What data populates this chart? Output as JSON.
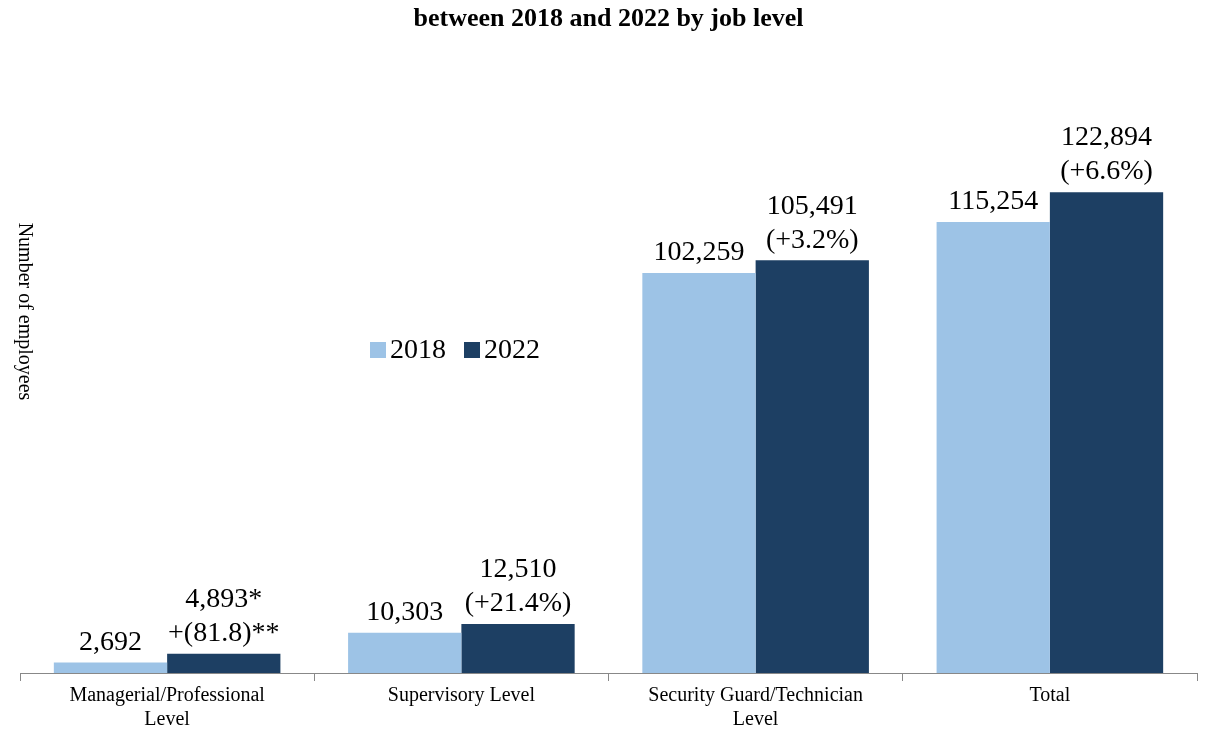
{
  "chart_data": {
    "type": "bar",
    "title": "between 2018 and 2022 by job level",
    "ylabel": "Number of employees",
    "categories": [
      "Managerial/Professional Level",
      "Supervisory Level",
      "Security Guard/Technician Level",
      "Total"
    ],
    "series": [
      {
        "name": "2018",
        "color": "#9dc3e6",
        "values": [
          2692,
          10303,
          102259,
          115254
        ],
        "value_labels": [
          "2,692",
          "10,303",
          "102,259",
          "115,254"
        ]
      },
      {
        "name": "2022",
        "color": "#1d3f63",
        "values": [
          4893,
          12510,
          105491,
          122894
        ],
        "value_labels": [
          "4,893*\n+(81.8)**",
          "12,510\n(+21.4%)",
          "105,491\n(+3.2%)",
          "122,894\n(+6.6%)"
        ]
      }
    ],
    "legend": "center left",
    "grid": false
  }
}
